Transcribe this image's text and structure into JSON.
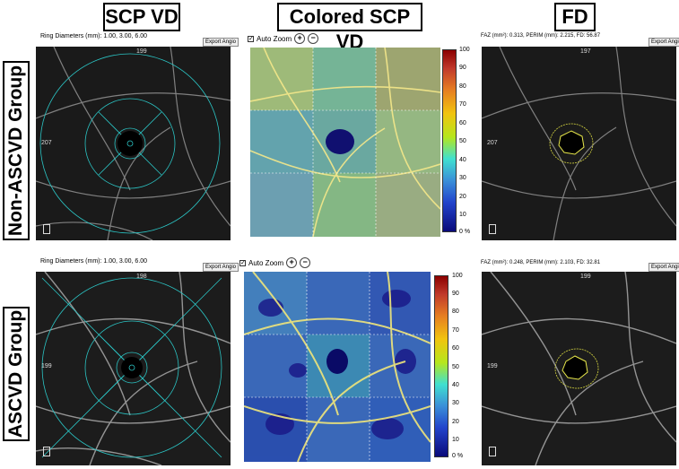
{
  "headers": {
    "scp_vd": "SCP VD",
    "colored_scp_vd": "Colored SCP VD",
    "fd": "FD"
  },
  "groups": {
    "non_ascvd": "Non-ASCVD Group",
    "ascvd": "ASCVD Group"
  },
  "row1": {
    "ring": "Ring Diameters (mm):  1.00,  3.00,  6.00",
    "export1": "Export Angio",
    "auto_zoom": "Auto Zoom",
    "faz": "FAZ (mm²):  0.313,  PERIM (mm):  2.215,  FD:  56.87",
    "export2": "Export Angio",
    "top_num": "199",
    "left_num": "207",
    "fd_top": "197",
    "fd_left": "207"
  },
  "row2": {
    "ring": "Ring Diameters (mm):  1.00,  3.00,  6.00",
    "export1": "Export Angio",
    "auto_zoom": "Auto Zoom",
    "faz": "FAZ (mm²):  0.248,  PERIM (mm):  2.103,  FD:  32.81",
    "export2": "Export Angio",
    "top_num": "198",
    "left_num": "199",
    "fd_top": "199",
    "fd_left": "199"
  },
  "colorbar_ticks": [
    "100",
    "90",
    "80",
    "70",
    "60",
    "50",
    "40",
    "30",
    "20",
    "10",
    "0 %"
  ],
  "icons": {
    "checkbox": "checkbox-icon",
    "zoom_in": "zoom-in-icon",
    "zoom_out": "zoom-out-icon"
  }
}
